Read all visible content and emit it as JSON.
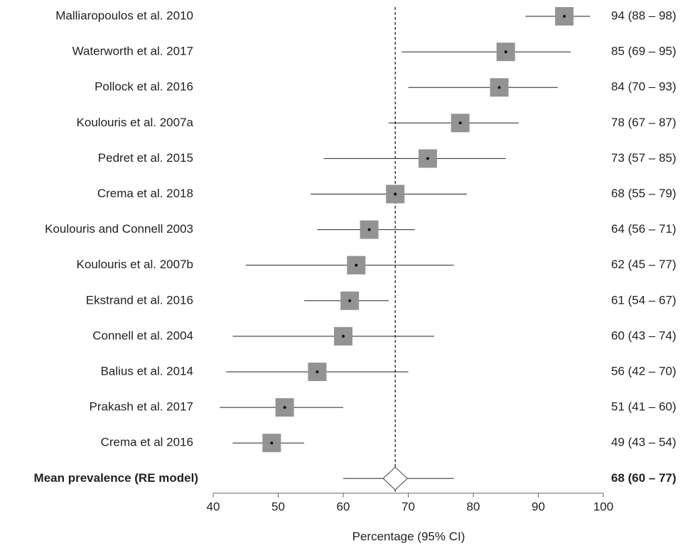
{
  "chart_data": {
    "type": "forest",
    "categories": [
      "Malliaropoulos et al. 2010",
      "Waterworth et al. 2017",
      "Pollock et al. 2016",
      "Koulouris et al. 2007a",
      "Pedret et al. 2015",
      "Crema et al. 2018",
      "Koulouris and Connell 2003",
      "Koulouris et al. 2007b",
      "Ekstrand et al. 2016",
      "Connell et al. 2004",
      "Balius et al. 2014",
      "Prakash et al. 2017",
      "Crema et al 2016"
    ],
    "values": [
      94,
      85,
      84,
      78,
      73,
      68,
      64,
      62,
      61,
      60,
      56,
      51,
      49
    ],
    "lower": [
      88,
      69,
      70,
      67,
      57,
      55,
      56,
      45,
      54,
      43,
      42,
      41,
      43
    ],
    "upper": [
      98,
      95,
      93,
      87,
      85,
      79,
      71,
      77,
      67,
      74,
      70,
      60,
      54
    ],
    "value_labels": [
      "94 (88 – 98)",
      "85 (69 – 95)",
      "84 (70 – 93)",
      "78 (67 – 87)",
      "73 (57 – 85)",
      "68 (55 – 79)",
      "64 (56 – 71)",
      "62 (45 – 77)",
      "61 (54 – 67)",
      "60 (43 – 74)",
      "56 (42 – 70)",
      "51 (41 – 60)",
      "49 (43 – 54)"
    ],
    "summary": {
      "name": "Mean prevalence (RE model)",
      "value": 68,
      "lower": 60,
      "upper": 77,
      "value_label": "68 (60 – 77)"
    },
    "xlabel": "Percentage (95% CI)",
    "xlim": [
      40,
      100
    ],
    "xticks": [
      40,
      50,
      60,
      70,
      80,
      90,
      100
    ],
    "color": "#939393"
  }
}
